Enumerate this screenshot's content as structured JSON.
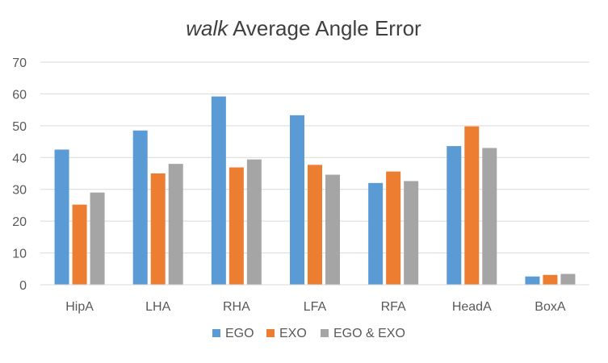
{
  "chart_data": {
    "type": "bar",
    "title_emphasis": "walk",
    "title": "Average Angle Error",
    "xlabel": "",
    "ylabel": "",
    "ylim": [
      0,
      70
    ],
    "yticks": [
      "0",
      "10",
      "20",
      "30",
      "40",
      "50",
      "60",
      "70"
    ],
    "grid": true,
    "legend_position": "bottom",
    "categories": [
      "HipA",
      "LHA",
      "RHA",
      "LFA",
      "RFA",
      "HeadA",
      "BoxA"
    ],
    "series": [
      {
        "name": "EGO",
        "color": "#5b9bd5",
        "values": [
          42.5,
          48.5,
          59.2,
          53.3,
          32.0,
          43.6,
          2.6
        ]
      },
      {
        "name": "EXO",
        "color": "#ed7d31",
        "values": [
          25.2,
          35.0,
          36.9,
          37.7,
          35.6,
          49.8,
          3.1
        ]
      },
      {
        "name": "EGO & EXO",
        "color": "#a5a5a5",
        "values": [
          29.0,
          38.0,
          39.4,
          34.6,
          32.6,
          43.0,
          3.4
        ]
      }
    ]
  }
}
